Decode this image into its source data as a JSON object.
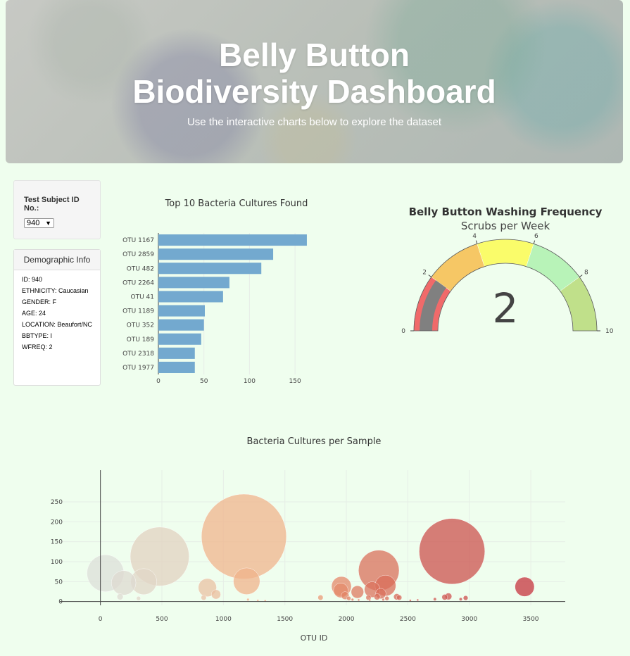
{
  "header": {
    "title": "Belly Button Biodiversity Dashboard",
    "subtitle": "Use the interactive charts below to explore the dataset"
  },
  "selector": {
    "label": "Test Subject ID No.:",
    "selected": "940"
  },
  "demographics": {
    "heading": "Demographic Info",
    "lines": [
      "ID: 940",
      "ETHNICITY: Caucasian",
      "GENDER: F",
      "AGE: 24",
      "LOCATION: Beaufort/NC",
      "BBTYPE: I",
      "WFREQ: 2"
    ]
  },
  "colors": {
    "bar": "#73a9cf",
    "page_bg": "#effeee",
    "gauge_needle": "#808080"
  },
  "chart_data": [
    {
      "type": "bar",
      "orientation": "horizontal",
      "title": "Top 10 Bacteria Cultures Found",
      "categories": [
        "OTU 1167",
        "OTU 2859",
        "OTU 482",
        "OTU 2264",
        "OTU 41",
        "OTU 1189",
        "OTU 352",
        "OTU 189",
        "OTU 2318",
        "OTU 1977"
      ],
      "values": [
        163,
        126,
        113,
        78,
        71,
        51,
        50,
        47,
        40,
        40
      ],
      "xticks": [
        0,
        50,
        100,
        150
      ],
      "xlim": [
        0,
        170
      ]
    },
    {
      "type": "gauge",
      "title": "Belly Button Washing Frequency",
      "subtitle": "Scrubs per Week",
      "value": 2,
      "range": [
        0,
        10
      ],
      "ticks": [
        0,
        2,
        4,
        6,
        8,
        10
      ],
      "bands": [
        {
          "range": [
            0,
            2
          ],
          "color": "#f06a6a"
        },
        {
          "range": [
            2,
            4
          ],
          "color": "#f6c765"
        },
        {
          "range": [
            4,
            6
          ],
          "color": "#fafc6a"
        },
        {
          "range": [
            6,
            8
          ],
          "color": "#b8f3b8"
        },
        {
          "range": [
            8,
            10
          ],
          "color": "#c0e08a"
        }
      ]
    },
    {
      "type": "scatter",
      "title": "Bacteria Cultures per Sample",
      "xlabel": "OTU ID",
      "ylabel": "",
      "xticks": [
        0,
        500,
        1000,
        1500,
        2000,
        2500,
        3000,
        3500
      ],
      "yticks": [
        0,
        50,
        100,
        150,
        200,
        250
      ],
      "xlim": [
        -330,
        3780
      ],
      "ylim": [
        -5,
        295
      ],
      "points": [
        {
          "x": 41,
          "y": 71
        },
        {
          "x": 189,
          "y": 47
        },
        {
          "x": 352,
          "y": 50
        },
        {
          "x": 482,
          "y": 113
        },
        {
          "x": 1167,
          "y": 163
        },
        {
          "x": 1189,
          "y": 51
        },
        {
          "x": 870,
          "y": 35
        },
        {
          "x": 940,
          "y": 18
        },
        {
          "x": 160,
          "y": 12
        },
        {
          "x": 310,
          "y": 8
        },
        {
          "x": 840,
          "y": 10
        },
        {
          "x": 1200,
          "y": 5
        },
        {
          "x": 1280,
          "y": 3
        },
        {
          "x": 1340,
          "y": 2
        },
        {
          "x": 1790,
          "y": 10
        },
        {
          "x": 1960,
          "y": 38
        },
        {
          "x": 1955,
          "y": 28
        },
        {
          "x": 1990,
          "y": 15
        },
        {
          "x": 2090,
          "y": 24
        },
        {
          "x": 2020,
          "y": 8
        },
        {
          "x": 2050,
          "y": 5
        },
        {
          "x": 2100,
          "y": 4
        },
        {
          "x": 2180,
          "y": 10
        },
        {
          "x": 2190,
          "y": 4
        },
        {
          "x": 2264,
          "y": 78
        },
        {
          "x": 2318,
          "y": 40
        },
        {
          "x": 2210,
          "y": 30
        },
        {
          "x": 2280,
          "y": 20
        },
        {
          "x": 2250,
          "y": 12
        },
        {
          "x": 2330,
          "y": 8
        },
        {
          "x": 2300,
          "y": 5
        },
        {
          "x": 2410,
          "y": 12
        },
        {
          "x": 2430,
          "y": 10
        },
        {
          "x": 2520,
          "y": 3
        },
        {
          "x": 2580,
          "y": 4
        },
        {
          "x": 2720,
          "y": 6
        },
        {
          "x": 2800,
          "y": 11
        },
        {
          "x": 2830,
          "y": 13
        },
        {
          "x": 2859,
          "y": 126
        },
        {
          "x": 2930,
          "y": 6
        },
        {
          "x": 2970,
          "y": 9
        },
        {
          "x": 3450,
          "y": 37
        }
      ]
    }
  ]
}
